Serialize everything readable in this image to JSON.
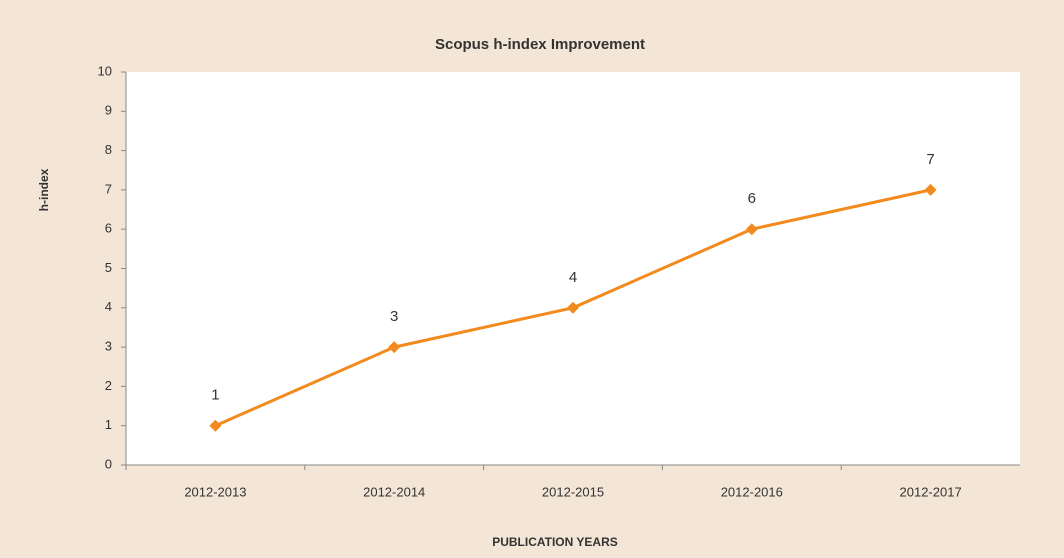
{
  "chart_data": {
    "type": "line",
    "title": "Scopus h-index Improvement",
    "x_label": "PUBLICATION YEARS",
    "y_label": "h-index",
    "categories": [
      "2012-2013",
      "2012-2014",
      "2012-2015",
      "2012-2016",
      "2012-2017"
    ],
    "series": [
      {
        "name": "h-index",
        "color": "#f28a1e",
        "values": [
          1,
          3,
          4,
          6,
          7
        ]
      }
    ],
    "ylim": [
      0,
      10
    ],
    "yticks": [
      0,
      1,
      2,
      3,
      4,
      5,
      6,
      7,
      8,
      9,
      10
    ]
  }
}
